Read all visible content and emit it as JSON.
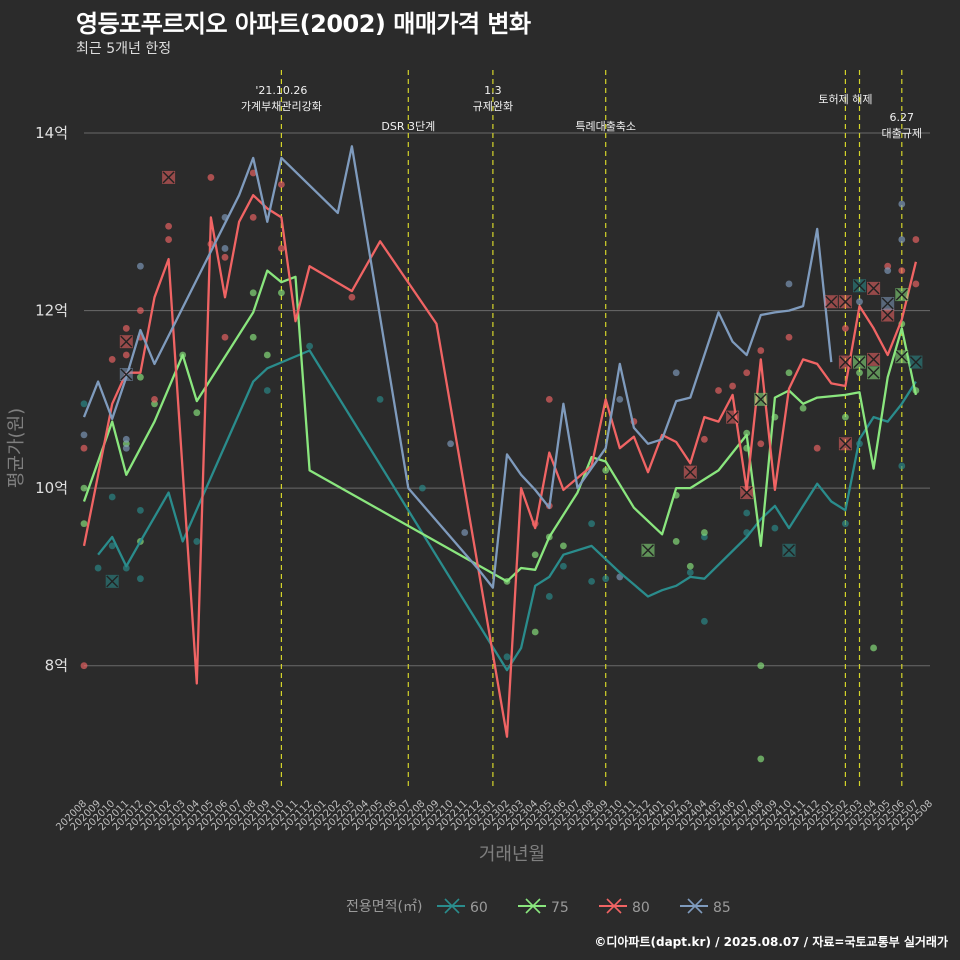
{
  "title": "영등포푸르지오 아파트(2002) 매매가격 변화",
  "subtitle": "최근 5개년 한정",
  "caption": "©디아파트(dapt.kr) / 2025.08.07 / 자료=국토교통부 실거래가",
  "chart_data": {
    "type": "line",
    "xlabel": "거래년월",
    "ylabel": "평균가(원)",
    "ylim": [
      6.6,
      14.8
    ],
    "yticks": [
      8,
      10,
      12,
      14
    ],
    "ytick_labels": [
      "8억",
      "10억",
      "12억",
      "14억"
    ],
    "grid": true,
    "legend_title": "전용면적(㎡)",
    "legend_position": "bottom",
    "categories": [
      "202008",
      "202009",
      "202010",
      "202011",
      "202012",
      "202101",
      "202102",
      "202103",
      "202104",
      "202105",
      "202106",
      "202107",
      "202108",
      "202109",
      "202110",
      "202111",
      "202112",
      "202201",
      "202202",
      "202203",
      "202204",
      "202205",
      "202206",
      "202207",
      "202208",
      "202209",
      "202210",
      "202211",
      "202212",
      "202301",
      "202302",
      "202303",
      "202304",
      "202305",
      "202306",
      "202307",
      "202308",
      "202309",
      "202310",
      "202311",
      "202312",
      "202401",
      "202402",
      "202403",
      "202404",
      "202405",
      "202406",
      "202407",
      "202408",
      "202409",
      "202410",
      "202411",
      "202412",
      "202501",
      "202502",
      "202503",
      "202504",
      "202505",
      "202506",
      "202507",
      "202508"
    ],
    "series": [
      {
        "name": "60",
        "color": "#2a8c8c",
        "values": [
          null,
          9.25,
          9.45,
          9.12,
          9.4,
          null,
          9.95,
          9.4,
          null,
          null,
          null,
          null,
          11.2,
          11.35,
          null,
          null,
          11.55,
          null,
          null,
          null,
          null,
          null,
          null,
          null,
          null,
          null,
          null,
          null,
          null,
          null,
          7.95,
          8.2,
          8.9,
          9.0,
          9.25,
          null,
          9.35,
          null,
          9.05,
          null,
          8.78,
          8.85,
          8.9,
          9.0,
          8.98,
          null,
          null,
          9.45,
          9.65,
          9.8,
          9.55,
          null,
          10.05,
          9.85,
          9.75,
          10.55,
          10.8,
          10.75,
          10.95,
          11.2,
          null
        ]
      },
      {
        "name": "75",
        "color": "#8ae67e",
        "values": [
          9.85,
          null,
          10.75,
          10.15,
          10.45,
          10.75,
          null,
          11.5,
          10.98,
          null,
          null,
          null,
          11.98,
          12.45,
          12.32,
          12.38,
          10.2,
          null,
          null,
          null,
          null,
          null,
          null,
          null,
          null,
          null,
          null,
          null,
          null,
          null,
          8.95,
          9.1,
          9.08,
          9.45,
          null,
          9.95,
          10.35,
          10.3,
          null,
          9.78,
          null,
          9.48,
          10.0,
          10.0,
          null,
          10.2,
          null,
          10.6,
          9.35,
          11.02,
          11.1,
          10.95,
          11.02,
          null,
          11.05,
          11.08,
          10.22,
          11.25,
          11.8,
          11.05,
          null
        ]
      },
      {
        "name": "80",
        "color": "#f06464",
        "values": [
          9.35,
          null,
          10.95,
          11.3,
          11.3,
          12.15,
          12.58,
          null,
          7.8,
          13.05,
          12.15,
          13.0,
          13.3,
          13.15,
          13.05,
          11.88,
          12.5,
          null,
          null,
          12.22,
          null,
          12.78,
          null,
          null,
          null,
          11.85,
          null,
          null,
          null,
          null,
          7.2,
          10.0,
          9.55,
          10.4,
          9.98,
          null,
          10.25,
          11.0,
          10.45,
          10.58,
          10.18,
          10.6,
          10.52,
          10.28,
          10.8,
          10.75,
          11.05,
          9.98,
          11.45,
          9.98,
          11.12,
          11.45,
          11.4,
          11.18,
          11.15,
          12.05,
          11.8,
          11.5,
          11.9,
          12.55,
          null
        ]
      },
      {
        "name": "85",
        "color": "#7f9bbd",
        "values": [
          10.8,
          11.2,
          10.78,
          11.25,
          11.78,
          11.4,
          null,
          null,
          null,
          null,
          null,
          13.3,
          13.72,
          13.0,
          13.72,
          null,
          null,
          null,
          13.1,
          13.85,
          null,
          null,
          null,
          10.0,
          null,
          null,
          null,
          null,
          9.08,
          8.88,
          10.38,
          10.15,
          9.98,
          9.78,
          10.95,
          10.0,
          null,
          10.45,
          11.4,
          10.68,
          10.5,
          10.55,
          10.98,
          11.02,
          11.5,
          11.98,
          11.65,
          11.5,
          11.95,
          11.98,
          12.0,
          12.05,
          12.92,
          11.42,
          null,
          null,
          null,
          null,
          null,
          null,
          null
        ]
      }
    ],
    "gaps": {
      "60": [
        [
          11,
          12
        ],
        [
          28,
          29
        ]
      ],
      "85": []
    },
    "points": [
      {
        "s": "60",
        "x": "202008",
        "y": 10.95
      },
      {
        "s": "60",
        "x": "202009",
        "y": 9.1
      },
      {
        "s": "60",
        "x": "202010",
        "y": 9.35
      },
      {
        "s": "60",
        "x": "202010",
        "y": 9.9
      },
      {
        "s": "60",
        "x": "202011",
        "y": 9.1
      },
      {
        "s": "60",
        "x": "202012",
        "y": 8.98
      },
      {
        "s": "60",
        "x": "202012",
        "y": 9.75
      },
      {
        "s": "60",
        "x": "202104",
        "y": 9.4
      },
      {
        "s": "60",
        "x": "202109",
        "y": 11.1
      },
      {
        "s": "60",
        "x": "202112",
        "y": 11.6
      },
      {
        "s": "60",
        "x": "202205",
        "y": 11.0
      },
      {
        "s": "60",
        "x": "202208",
        "y": 10.0
      },
      {
        "s": "60",
        "x": "202302",
        "y": 8.1
      },
      {
        "s": "60",
        "x": "202305",
        "y": 8.78
      },
      {
        "s": "60",
        "x": "202306",
        "y": 9.12
      },
      {
        "s": "60",
        "x": "202308",
        "y": 8.95
      },
      {
        "s": "60",
        "x": "202308",
        "y": 9.6
      },
      {
        "s": "60",
        "x": "202309",
        "y": 8.98
      },
      {
        "s": "60",
        "x": "202403",
        "y": 9.05
      },
      {
        "s": "60",
        "x": "202404",
        "y": 8.5
      },
      {
        "s": "60",
        "x": "202404",
        "y": 9.45
      },
      {
        "s": "60",
        "x": "202407",
        "y": 9.5
      },
      {
        "s": "60",
        "x": "202407",
        "y": 9.72
      },
      {
        "s": "60",
        "x": "202409",
        "y": 9.55
      },
      {
        "s": "60",
        "x": "202502",
        "y": 9.6
      },
      {
        "s": "60",
        "x": "202503",
        "y": 10.5
      },
      {
        "s": "60",
        "x": "202506",
        "y": 10.25
      },
      {
        "s": "75",
        "x": "202008",
        "y": 9.6
      },
      {
        "s": "75",
        "x": "202008",
        "y": 10.0
      },
      {
        "s": "75",
        "x": "202011",
        "y": 10.5
      },
      {
        "s": "75",
        "x": "202012",
        "y": 9.4
      },
      {
        "s": "75",
        "x": "202012",
        "y": 11.25
      },
      {
        "s": "75",
        "x": "202101",
        "y": 10.95
      },
      {
        "s": "75",
        "x": "202103",
        "y": 11.5
      },
      {
        "s": "75",
        "x": "202104",
        "y": 10.85
      },
      {
        "s": "75",
        "x": "202108",
        "y": 11.7
      },
      {
        "s": "75",
        "x": "202108",
        "y": 12.2
      },
      {
        "s": "75",
        "x": "202109",
        "y": 11.5
      },
      {
        "s": "75",
        "x": "202110",
        "y": 12.2
      },
      {
        "s": "75",
        "x": "202302",
        "y": 8.95
      },
      {
        "s": "75",
        "x": "202304",
        "y": 8.38
      },
      {
        "s": "75",
        "x": "202304",
        "y": 9.25
      },
      {
        "s": "75",
        "x": "202305",
        "y": 9.45
      },
      {
        "s": "75",
        "x": "202306",
        "y": 9.35
      },
      {
        "s": "75",
        "x": "202309",
        "y": 10.2
      },
      {
        "s": "75",
        "x": "202402",
        "y": 9.4
      },
      {
        "s": "75",
        "x": "202402",
        "y": 9.92
      },
      {
        "s": "75",
        "x": "202403",
        "y": 9.12
      },
      {
        "s": "75",
        "x": "202404",
        "y": 9.5
      },
      {
        "s": "75",
        "x": "202407",
        "y": 10.45
      },
      {
        "s": "75",
        "x": "202407",
        "y": 10.62
      },
      {
        "s": "75",
        "x": "202408",
        "y": 8.0
      },
      {
        "s": "75",
        "x": "202408",
        "y": 6.95
      },
      {
        "s": "75",
        "x": "202409",
        "y": 10.8
      },
      {
        "s": "75",
        "x": "202410",
        "y": 11.3
      },
      {
        "s": "75",
        "x": "202411",
        "y": 10.9
      },
      {
        "s": "75",
        "x": "202502",
        "y": 10.8
      },
      {
        "s": "75",
        "x": "202503",
        "y": 11.3
      },
      {
        "s": "75",
        "x": "202504",
        "y": 8.2
      },
      {
        "s": "75",
        "x": "202506",
        "y": 11.85
      },
      {
        "s": "75",
        "x": "202507",
        "y": 11.1
      },
      {
        "s": "80",
        "x": "202008",
        "y": 8.0
      },
      {
        "s": "80",
        "x": "202008",
        "y": 10.45
      },
      {
        "s": "80",
        "x": "202010",
        "y": 11.45
      },
      {
        "s": "80",
        "x": "202011",
        "y": 11.8
      },
      {
        "s": "80",
        "x": "202011",
        "y": 11.5
      },
      {
        "s": "80",
        "x": "202012",
        "y": 12.0
      },
      {
        "s": "80",
        "x": "202012",
        "y": 11.7
      },
      {
        "s": "80",
        "x": "202101",
        "y": 11.0
      },
      {
        "s": "80",
        "x": "202102",
        "y": 12.8
      },
      {
        "s": "80",
        "x": "202102",
        "y": 12.95
      },
      {
        "s": "80",
        "x": "202105",
        "y": 13.5
      },
      {
        "s": "80",
        "x": "202105",
        "y": 12.75
      },
      {
        "s": "80",
        "x": "202106",
        "y": 12.6
      },
      {
        "s": "80",
        "x": "202106",
        "y": 11.7
      },
      {
        "s": "80",
        "x": "202108",
        "y": 13.55
      },
      {
        "s": "80",
        "x": "202108",
        "y": 13.05
      },
      {
        "s": "80",
        "x": "202110",
        "y": 13.42
      },
      {
        "s": "80",
        "x": "202110",
        "y": 12.7
      },
      {
        "s": "80",
        "x": "202203",
        "y": 12.15
      },
      {
        "s": "80",
        "x": "202305",
        "y": 11.0
      },
      {
        "s": "80",
        "x": "202305",
        "y": 9.8
      },
      {
        "s": "80",
        "x": "202304",
        "y": 9.6
      },
      {
        "s": "80",
        "x": "202311",
        "y": 10.75
      },
      {
        "s": "80",
        "x": "202404",
        "y": 10.55
      },
      {
        "s": "80",
        "x": "202405",
        "y": 11.1
      },
      {
        "s": "80",
        "x": "202406",
        "y": 11.15
      },
      {
        "s": "80",
        "x": "202407",
        "y": 11.3
      },
      {
        "s": "80",
        "x": "202408",
        "y": 11.55
      },
      {
        "s": "80",
        "x": "202408",
        "y": 10.5
      },
      {
        "s": "80",
        "x": "202410",
        "y": 11.7
      },
      {
        "s": "80",
        "x": "202412",
        "y": 10.45
      },
      {
        "s": "80",
        "x": "202502",
        "y": 11.8
      },
      {
        "s": "80",
        "x": "202505",
        "y": 12.5
      },
      {
        "s": "80",
        "x": "202506",
        "y": 12.45
      },
      {
        "s": "80",
        "x": "202507",
        "y": 12.3
      },
      {
        "s": "80",
        "x": "202507",
        "y": 12.8
      },
      {
        "s": "85",
        "x": "202008",
        "y": 10.6
      },
      {
        "s": "85",
        "x": "202011",
        "y": 10.55
      },
      {
        "s": "85",
        "x": "202011",
        "y": 10.45
      },
      {
        "s": "85",
        "x": "202012",
        "y": 12.5
      },
      {
        "s": "85",
        "x": "202106",
        "y": 12.7
      },
      {
        "s": "85",
        "x": "202106",
        "y": 13.05
      },
      {
        "s": "85",
        "x": "202210",
        "y": 10.5
      },
      {
        "s": "85",
        "x": "202211",
        "y": 9.5
      },
      {
        "s": "85",
        "x": "202310",
        "y": 11.0
      },
      {
        "s": "85",
        "x": "202310",
        "y": 9.0
      },
      {
        "s": "85",
        "x": "202402",
        "y": 11.3
      },
      {
        "s": "85",
        "x": "202410",
        "y": 12.3
      },
      {
        "s": "85",
        "x": "202503",
        "y": 12.1
      },
      {
        "s": "85",
        "x": "202505",
        "y": 12.45
      },
      {
        "s": "85",
        "x": "202506",
        "y": 13.2
      },
      {
        "s": "85",
        "x": "202506",
        "y": 12.8
      }
    ],
    "crosses": [
      {
        "s": "60",
        "x": "202010",
        "y": 8.95
      },
      {
        "s": "60",
        "x": "202410",
        "y": 9.3
      },
      {
        "s": "60",
        "x": "202503",
        "y": 12.28
      },
      {
        "s": "60",
        "x": "202507",
        "y": 11.42
      },
      {
        "s": "75",
        "x": "202312",
        "y": 9.3
      },
      {
        "s": "75",
        "x": "202408",
        "y": 11.0
      },
      {
        "s": "75",
        "x": "202503",
        "y": 11.42
      },
      {
        "s": "75",
        "x": "202504",
        "y": 11.3
      },
      {
        "s": "75",
        "x": "202506",
        "y": 12.18
      },
      {
        "s": "75",
        "x": "202506",
        "y": 11.48
      },
      {
        "s": "80",
        "x": "202011",
        "y": 11.65
      },
      {
        "s": "80",
        "x": "202102",
        "y": 13.5
      },
      {
        "s": "80",
        "x": "202403",
        "y": 10.18
      },
      {
        "s": "80",
        "x": "202406",
        "y": 10.8
      },
      {
        "s": "80",
        "x": "202407",
        "y": 9.95
      },
      {
        "s": "80",
        "x": "202501",
        "y": 12.1
      },
      {
        "s": "80",
        "x": "202502",
        "y": 12.1
      },
      {
        "s": "80",
        "x": "202502",
        "y": 11.42
      },
      {
        "s": "80",
        "x": "202502",
        "y": 10.5
      },
      {
        "s": "80",
        "x": "202504",
        "y": 12.25
      },
      {
        "s": "80",
        "x": "202504",
        "y": 11.45
      },
      {
        "s": "80",
        "x": "202505",
        "y": 11.95
      },
      {
        "s": "85",
        "x": "202011",
        "y": 11.28
      },
      {
        "s": "85",
        "x": "202505",
        "y": 12.08
      }
    ],
    "vlines": [
      {
        "x": "202110",
        "label": [
          "'21.10.26",
          "가계부채관리강화"
        ]
      },
      {
        "x": "202207",
        "label": [
          "DSR 3단계"
        ]
      },
      {
        "x": "202301",
        "label": [
          "1.3",
          "규제완화"
        ]
      },
      {
        "x": "202309",
        "label": [
          "특례대출축소"
        ]
      },
      {
        "x": "202502",
        "label": [
          "토허제 해제"
        ]
      },
      {
        "x": "202503",
        "label": []
      },
      {
        "x": "202506",
        "label": [
          "6.27",
          "대출규제"
        ]
      }
    ]
  }
}
